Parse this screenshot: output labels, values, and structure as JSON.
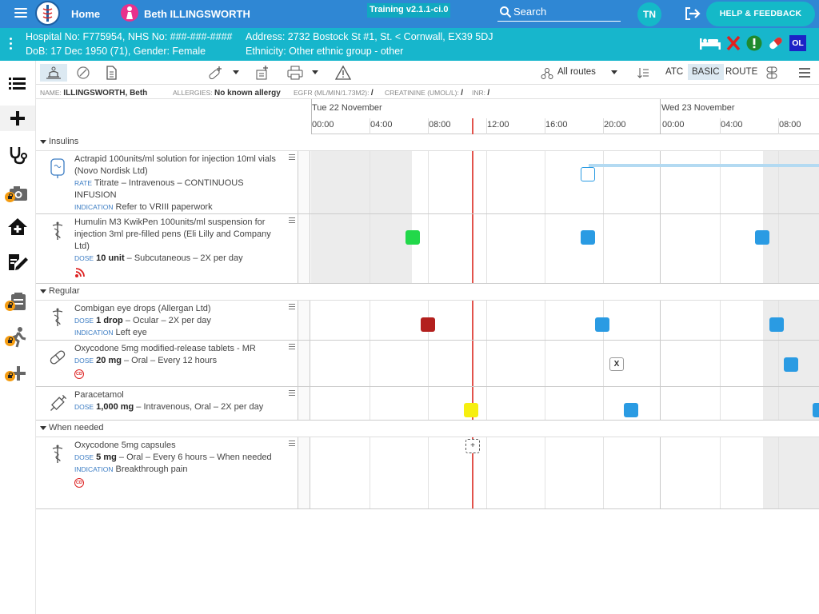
{
  "topbar": {
    "home_label": "Home",
    "patient_name": "Beth ILLINGSWORTH",
    "training_badge": "Training v2.1.1-ci.0",
    "search_label": "Search",
    "user_initials": "TN",
    "help_label": "HELP & FEEDBACK",
    "bar_color": "#2f87d4"
  },
  "banner": {
    "hospital_no": "Hospital No: F775954, NHS No: ###-###-####",
    "address": "Address: 2732 Bostock St #1, St. < Cornwall, EX39 5DJ",
    "dob": "DoB: 17 Dec 1950 (71), Gender: Female",
    "ethnicity": "Ethnicity: Other ethnic group - other",
    "ol_badge": "OL",
    "color": "#17b6cc"
  },
  "sidebar": {
    "items": [
      {
        "icon": "list-icon",
        "locked": false
      },
      {
        "icon": "plus-icon",
        "locked": false,
        "active": true
      },
      {
        "icon": "stethoscope-icon",
        "locked": false
      },
      {
        "icon": "camera-icon",
        "locked": true
      },
      {
        "icon": "home-plus-icon",
        "locked": false
      },
      {
        "icon": "edit-document-icon",
        "locked": false
      },
      {
        "icon": "clipboard-icon",
        "locked": true
      },
      {
        "icon": "walking-icon",
        "locked": true
      },
      {
        "icon": "plus-lock-icon",
        "locked": true
      }
    ]
  },
  "toolbar": {
    "routes_label": "All routes",
    "atc_label": "ATC",
    "basic_label": "BASIC",
    "route_label": "ROUTE"
  },
  "infoline": {
    "name_key": "NAME:",
    "name_val": "ILLINGSWORTH, Beth",
    "allergies_key": "ALLERGIES:",
    "allergies_val": "No known allergy",
    "egfr_key": "EGFR (ML/MIN/1.73M2):",
    "egfr_val": "/",
    "creat_key": "CREATININE (UMOL/L):",
    "creat_val": "/",
    "inr_key": "INR:",
    "inr_val": "/"
  },
  "timeline": {
    "days": [
      "Tue 22 November",
      "Wed 23 November"
    ],
    "hours": [
      "00:00",
      "04:00",
      "08:00",
      "12:00",
      "16:00",
      "20:00",
      "00:00",
      "04:00",
      "08:00"
    ]
  },
  "sections": [
    {
      "label": "Insulins",
      "meds": [
        {
          "name": "Actrapid 100units/ml solution for injection 10ml vials (Novo Nordisk Ltd)",
          "line2_key": "RATE",
          "line2": "Titrate – Intravenous – CONTINUOUS INFUSION",
          "line3_key": "INDICATION",
          "line3": "Refer to VRIII paperwork",
          "icon": "infusion-bag-icon"
        },
        {
          "name": "Humulin M3 KwikPen 100units/ml suspension for injection 3ml pre-filled pens (Eli Lilly and Company Ltd)",
          "line2_key": "DOSE",
          "line2_bold": "10 unit",
          "line2": " – Subcutaneous – 2X per day",
          "icon": "caduceus-icon",
          "badge": "signal-icon"
        }
      ]
    },
    {
      "label": "Regular",
      "meds": [
        {
          "name": "Combigan eye drops (Allergan Ltd)",
          "line2_key": "DOSE",
          "line2_bold": "1 drop",
          "line2": " – Ocular – 2X per day",
          "line3_key": "INDICATION",
          "line3": "Left eye",
          "icon": "caduceus-icon"
        },
        {
          "name": "Oxycodone 5mg modified-release tablets - MR",
          "line2_key": "DOSE",
          "line2_bold": "20 mg",
          "line2": " – Oral – Every 12 hours",
          "icon": "pill-icon",
          "badge": "CD"
        },
        {
          "name": "Paracetamol",
          "line2_key": "DOSE",
          "line2_bold": "1,000 mg",
          "line2": " – Intravenous, Oral – 2X per day",
          "icon": "syringe-icon"
        }
      ]
    },
    {
      "label": "When needed",
      "meds": [
        {
          "name": "Oxycodone 5mg capsules",
          "line2_key": "DOSE",
          "line2_bold": "5 mg",
          "line2": " – Oral – Every 6 hours – When needed",
          "line3_key": "INDICATION",
          "line3": "Breakthrough pain",
          "icon": "caduceus-icon",
          "badge": "CD"
        }
      ]
    }
  ],
  "doses": {
    "x_marker": "X",
    "plus_marker": "+"
  },
  "colors": {
    "administered": "#22d84a",
    "scheduled": "#2a9be3",
    "missed": "#b3201e",
    "due": "#f6ef10",
    "now_line": "#e2524b"
  }
}
